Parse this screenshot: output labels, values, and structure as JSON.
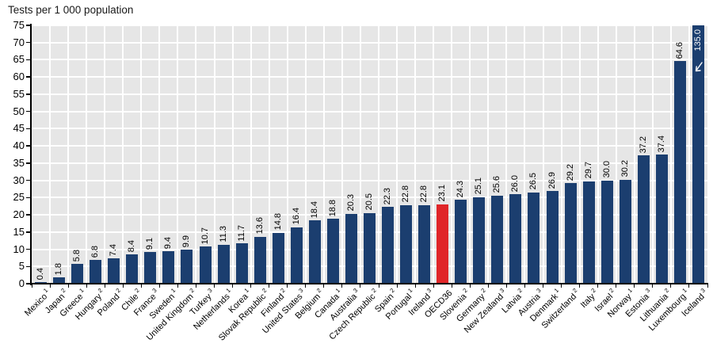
{
  "title": "Tests per 1 000 population",
  "chart_data": {
    "type": "bar",
    "title": "Tests per 1 000 population",
    "xlabel": "",
    "ylabel": "Tests per 1 000 population",
    "ylim": [
      0,
      75
    ],
    "ytick_step": 5,
    "grid": true,
    "legend_position": "none",
    "bar_color": "#1b3e6f",
    "highlight_color": "#e02528",
    "highlight_index": 22,
    "plot_background": "#e6e6e6",
    "gridline_color": "#ffffff",
    "categories": [
      "Mexico",
      "Japan",
      "Greece",
      "Hungary",
      "Poland",
      "Chile",
      "France",
      "Sweden",
      "United Kingdom",
      "Turkey",
      "Netherlands",
      "Korea",
      "Slovak Republic",
      "Finland",
      "United States",
      "Belgium",
      "Canada",
      "Australia",
      "Czech Republic",
      "Spain",
      "Portugal",
      "Ireland",
      "OECD36",
      "Slovenia",
      "Germany",
      "New Zealand",
      "Latvia",
      "Austria",
      "Denmark",
      "Switzerland",
      "Italy",
      "Israel",
      "Norway",
      "Estonia",
      "Lithuania",
      "Luxembourg",
      "Iceland"
    ],
    "footnote_marks": [
      "1",
      "2",
      "1",
      "2",
      "2",
      "2",
      "3",
      "1",
      "2",
      "3",
      "1",
      "1",
      "2",
      "2",
      "3",
      "2",
      "1",
      "3",
      "2",
      "2",
      "1",
      "3",
      "",
      "2",
      "2",
      "3",
      "2",
      "3",
      "1",
      "2",
      "2",
      "2",
      "1",
      "3",
      "2",
      "1",
      "3"
    ],
    "values": [
      0.4,
      1.8,
      5.8,
      6.8,
      7.4,
      8.4,
      9.1,
      9.4,
      9.9,
      10.7,
      11.3,
      11.7,
      13.6,
      14.8,
      16.4,
      18.4,
      18.8,
      20.3,
      20.5,
      22.3,
      22.8,
      22.8,
      23.1,
      24.3,
      25.1,
      25.6,
      26.0,
      26.5,
      26.9,
      29.2,
      29.7,
      30.0,
      30.2,
      37.2,
      37.4,
      64.6,
      135.0
    ],
    "truncated_bars": [
      {
        "index": 36,
        "display_value": "135.0"
      }
    ]
  }
}
